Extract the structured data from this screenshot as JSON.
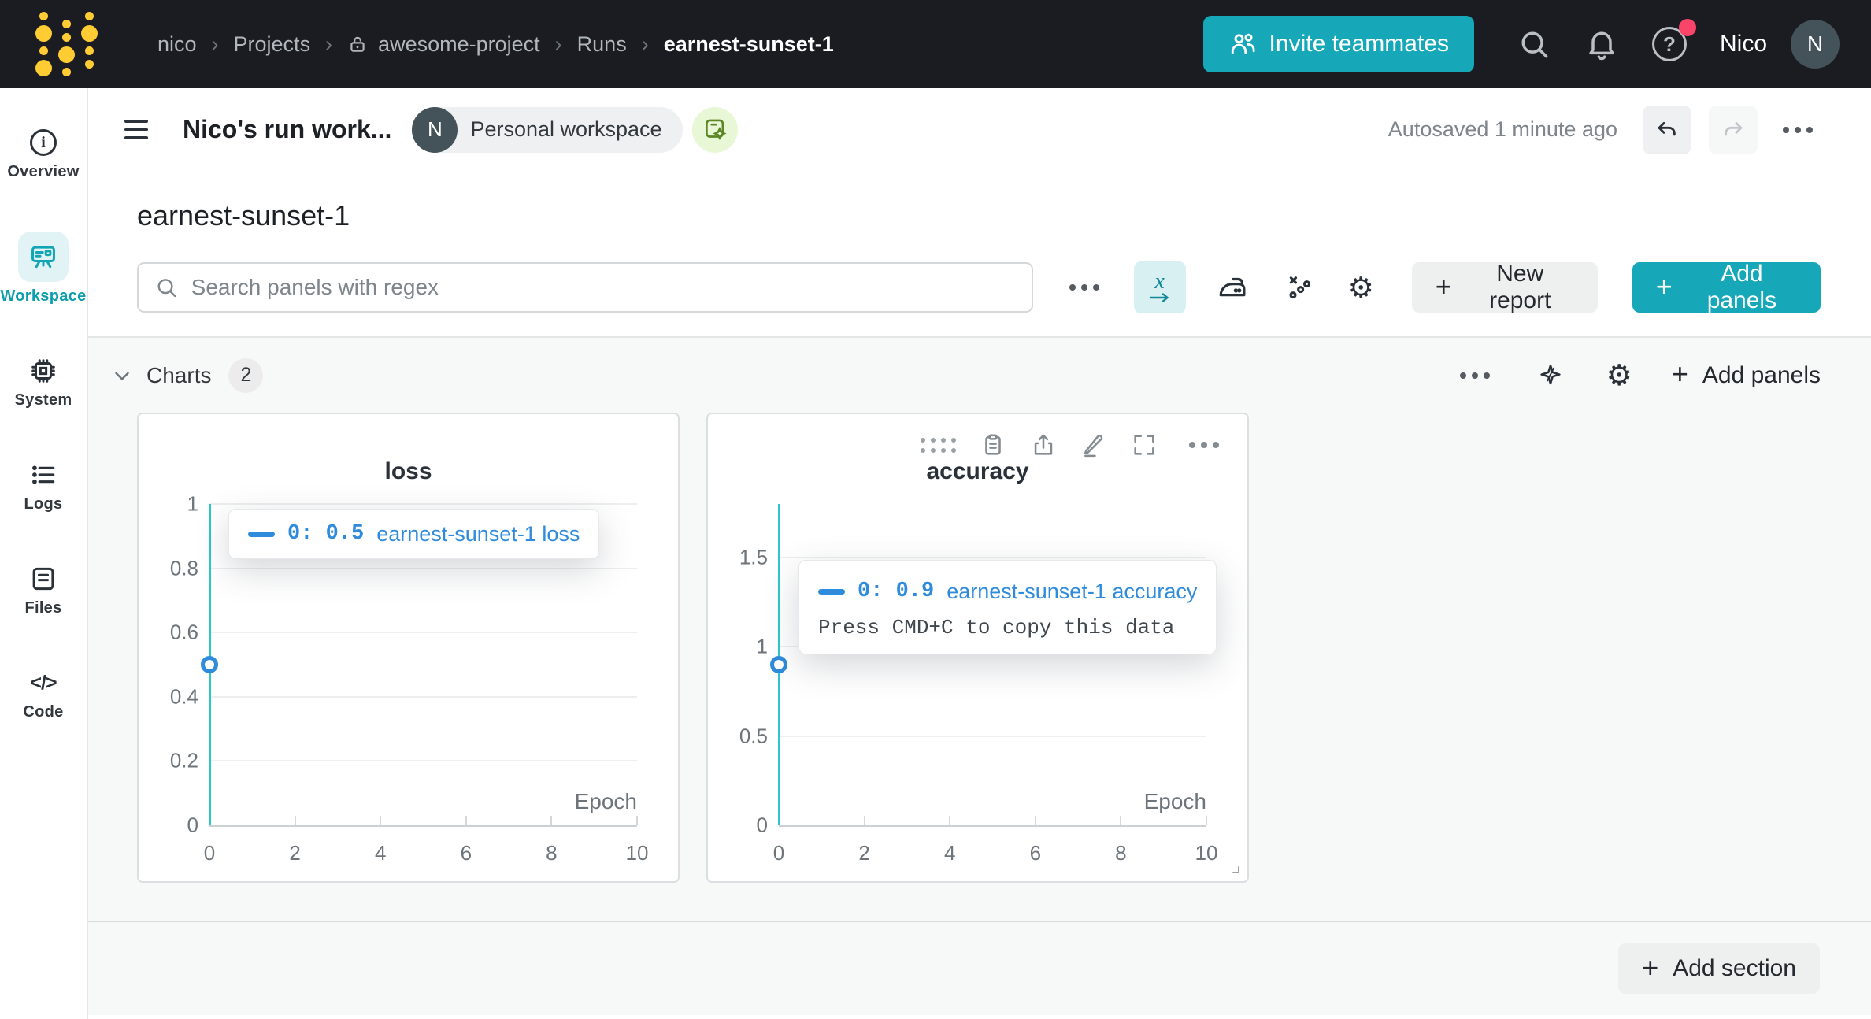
{
  "navbar": {
    "breadcrumb": [
      {
        "label": "nico"
      },
      {
        "label": "Projects"
      },
      {
        "label": "awesome-project",
        "locked": true
      },
      {
        "label": "Runs"
      },
      {
        "label": "earnest-sunset-1",
        "current": true
      }
    ],
    "invite_button_label": "Invite teammates",
    "user_name": "Nico",
    "avatar_initial": "N",
    "help_glyph": "?"
  },
  "sidebar": {
    "items": [
      {
        "label": "Overview"
      },
      {
        "label": "Workspace",
        "active": true
      },
      {
        "label": "System"
      },
      {
        "label": "Logs"
      },
      {
        "label": "Files"
      },
      {
        "label": "Code"
      }
    ]
  },
  "workspace_header": {
    "title": "Nico's run work...",
    "workspace_badge": {
      "initial": "N",
      "label": "Personal workspace"
    },
    "autosave_status": "Autosaved 1 minute ago"
  },
  "run": {
    "name": "earnest-sunset-1"
  },
  "panel_toolbar": {
    "search_placeholder": "Search panels with regex",
    "new_report_label": "New report",
    "add_panels_label": "Add panels"
  },
  "charts_section": {
    "title": "Charts",
    "count": "2",
    "add_panels_label": "Add panels"
  },
  "chart_data": [
    {
      "type": "line",
      "title": "loss",
      "xlabel": "Epoch",
      "xlim": [
        0,
        10
      ],
      "xticks": [
        0,
        2,
        4,
        6,
        8,
        10
      ],
      "xtick_labels": [
        "0",
        "2",
        "4",
        "6",
        "8",
        "10"
      ],
      "ylim": [
        0,
        1
      ],
      "yticks": [
        0,
        0.2,
        0.4,
        0.6,
        0.8,
        1
      ],
      "ytick_labels": [
        "0",
        "0.2",
        "0.4",
        "0.6",
        "0.8",
        "1"
      ],
      "grid": true,
      "legend_position": "none",
      "crosshair_x": 0,
      "series": [
        {
          "name": "earnest-sunset-1 loss",
          "x": [
            0
          ],
          "y": [
            0.5
          ]
        }
      ],
      "tooltip": {
        "value": "0: 0.5",
        "series": "earnest-sunset-1 loss"
      }
    },
    {
      "type": "line",
      "title": "accuracy",
      "xlabel": "Epoch",
      "xlim": [
        0,
        10
      ],
      "xticks": [
        0,
        2,
        4,
        6,
        8,
        10
      ],
      "xtick_labels": [
        "0",
        "2",
        "4",
        "6",
        "8",
        "10"
      ],
      "ylim": [
        0,
        1.8
      ],
      "yticks": [
        0,
        0.5,
        1,
        1.5
      ],
      "ytick_labels": [
        "0",
        "0.5",
        "1",
        "1.5"
      ],
      "grid": true,
      "legend_position": "none",
      "crosshair_x": 0,
      "series": [
        {
          "name": "earnest-sunset-1 accuracy",
          "x": [
            0
          ],
          "y": [
            0.9
          ]
        }
      ],
      "tooltip": {
        "value": "0: 0.9",
        "series": "earnest-sunset-1 accuracy",
        "hint": "Press CMD+C to copy this data"
      }
    }
  ],
  "footer": {
    "add_section_label": "Add section"
  },
  "colors": {
    "navbar_bg": "#1a1c21",
    "accent_teal": "#16a8b8",
    "selected_tile_teal": "#e1f3f5",
    "crosshair_cyan": "#2cc6ce",
    "point_blue": "#2f8bdb",
    "notification_red": "#fb4469",
    "logo_yellow": "#ffcc33",
    "section_bg": "#f7f8f8"
  },
  "icons": {
    "logo": "wandb-dots",
    "invite": "add-people",
    "smoothing": "iron",
    "outliers": "scatter-x",
    "settings": "gear",
    "magic": "sparkle"
  }
}
